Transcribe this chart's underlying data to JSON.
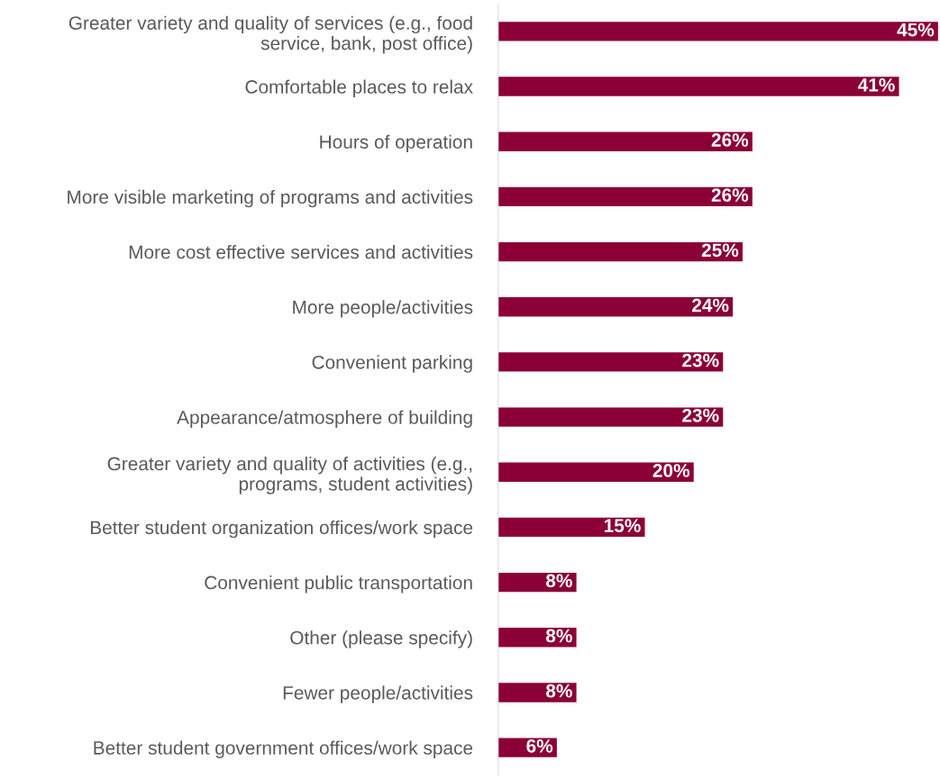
{
  "chart_data": {
    "type": "bar",
    "orientation": "horizontal",
    "categories": [
      "Greater variety and quality of services (e.g., food\nservice, bank, post office)",
      "Comfortable places to relax",
      "Hours of operation",
      "More visible marketing of programs and activities",
      "More cost effective services and activities",
      "More people/activities",
      "Convenient parking",
      "Appearance/atmosphere of building",
      "Greater variety and quality of activities (e.g.,\nprograms, student activities)",
      "Better student organization offices/work space",
      "Convenient public transportation",
      "Other (please specify)",
      "Fewer people/activities",
      "Better student government offices/work space"
    ],
    "values": [
      45,
      41,
      26,
      26,
      25,
      24,
      23,
      23,
      20,
      15,
      8,
      8,
      8,
      6
    ],
    "value_labels": [
      "45%",
      "41%",
      "26%",
      "26%",
      "25%",
      "24%",
      "23%",
      "23%",
      "20%",
      "15%",
      "8%",
      "8%",
      "8%",
      "6%"
    ],
    "color": "#8b0037",
    "tick_labels": "y",
    "grid": false,
    "legend": false
  }
}
